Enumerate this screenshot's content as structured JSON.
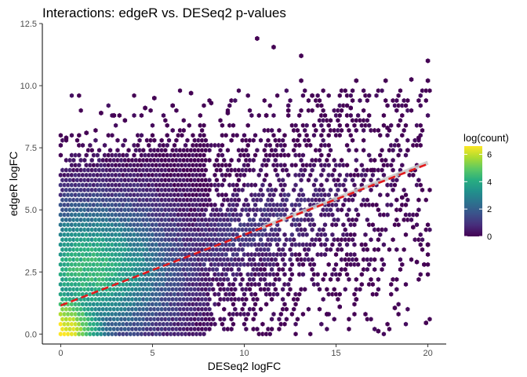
{
  "chart_data": {
    "type": "hexbin",
    "title": "Interactions: edgeR vs. DESeq2 p-values",
    "xlabel": "DESeq2 logFC",
    "ylabel": "edgeR logFC",
    "xlim": [
      -1,
      21
    ],
    "ylim": [
      -0.4,
      12.5
    ],
    "x_ticks": [
      0,
      5,
      10,
      15,
      20
    ],
    "x_tick_labels": [
      "0",
      "5",
      "10",
      "15",
      "20"
    ],
    "y_ticks": [
      0,
      2.5,
      5,
      7.5,
      10,
      12.5
    ],
    "y_tick_labels": [
      "0.0",
      "2.5",
      "5.0",
      "7.5",
      "10.0",
      "12.5"
    ],
    "grid": false,
    "legend": {
      "title": "log(count)",
      "position": "right",
      "ticks": [
        0,
        2,
        4,
        6
      ],
      "tick_labels": [
        "0",
        "2",
        "4",
        "6"
      ],
      "range": [
        0,
        6.6
      ],
      "colormap": "viridis"
    },
    "fit_lines": [
      {
        "style": "dashed",
        "color": "#e31a1c",
        "x": [
          0,
          20
        ],
        "y": [
          1.15,
          6.85
        ]
      },
      {
        "style": "solid",
        "color": "#c8c8c8",
        "x": [
          11,
          20
        ],
        "y": [
          4.3,
          6.9
        ]
      }
    ],
    "outliers": [
      [
        10.7,
        11.9
      ],
      [
        11.6,
        11.55
      ],
      [
        13.1,
        11.2
      ],
      [
        13.1,
        10.2
      ],
      [
        19.1,
        10.25
      ],
      [
        20,
        11.0
      ],
      [
        20,
        10.2
      ],
      [
        17.7,
        10.2
      ],
      [
        16.1,
        10.2
      ],
      [
        13.7,
        9.6
      ],
      [
        15.8,
        9.1
      ],
      [
        19.5,
        7.9
      ],
      [
        18.9,
        7.4
      ],
      [
        17.8,
        8.3
      ],
      [
        19.9,
        0.45
      ],
      [
        17.3,
        0.12
      ],
      [
        18.2,
        1.05
      ],
      [
        19.4,
        2.9
      ],
      [
        19.8,
        2.8
      ],
      [
        16.1,
        1.4
      ],
      [
        15.2,
        1.1
      ],
      [
        14.5,
        0.8
      ],
      [
        20,
        3.6
      ],
      [
        19.2,
        4.3
      ],
      [
        18.6,
        5.5
      ],
      [
        17.0,
        6.6
      ],
      [
        5.1,
        9.5
      ],
      [
        4.6,
        9.1
      ],
      [
        6.1,
        9.2
      ],
      [
        7.1,
        9.7
      ],
      [
        8.2,
        9.3
      ],
      [
        9.1,
        8.9
      ],
      [
        2.9,
        8.8
      ],
      [
        2.2,
        8.9
      ],
      [
        0.3,
        7.9
      ],
      [
        1.4,
        8.1
      ],
      [
        3.5,
        8.6
      ],
      [
        11.2,
        8.8
      ],
      [
        12.4,
        9.0
      ]
    ]
  }
}
